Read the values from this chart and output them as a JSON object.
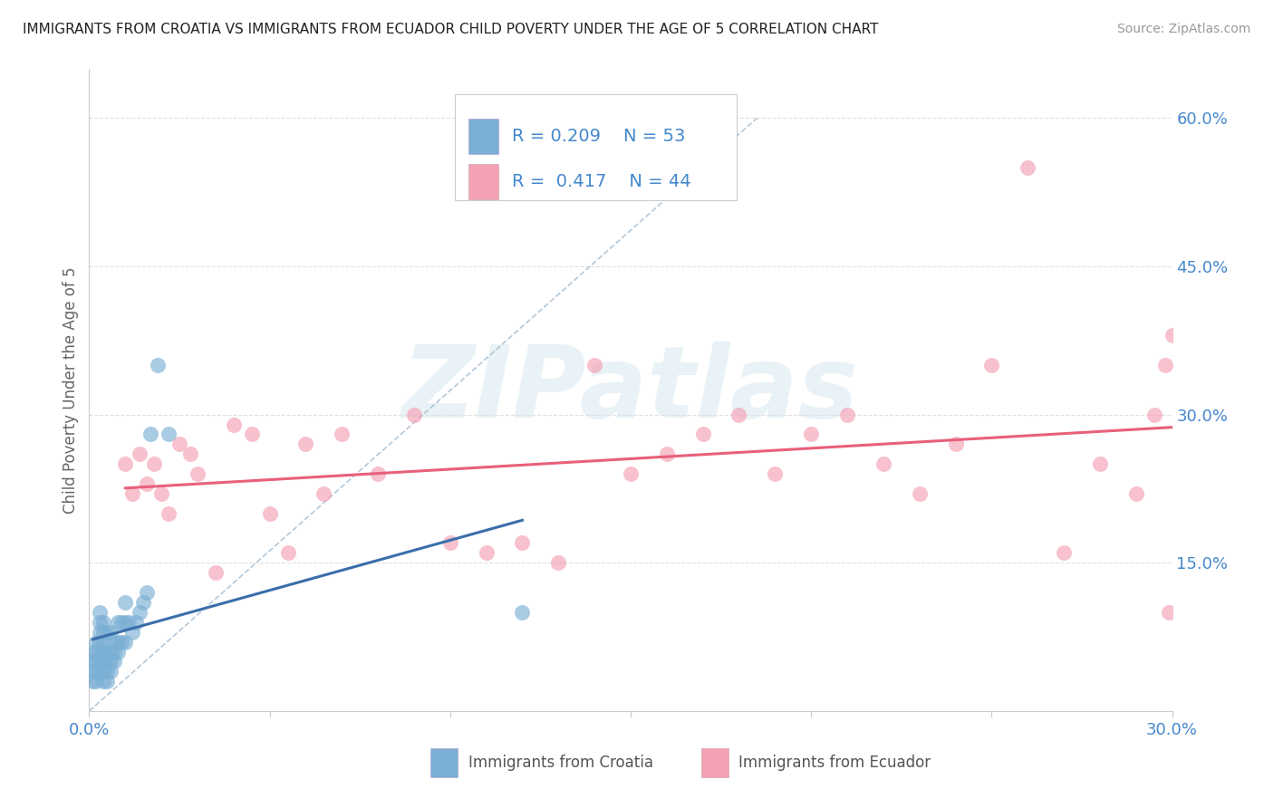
{
  "title": "IMMIGRANTS FROM CROATIA VS IMMIGRANTS FROM ECUADOR CHILD POVERTY UNDER THE AGE OF 5 CORRELATION CHART",
  "source": "Source: ZipAtlas.com",
  "ylabel": "Child Poverty Under the Age of 5",
  "xlim": [
    0.0,
    0.3
  ],
  "ylim": [
    0.0,
    0.65
  ],
  "xtick_vals": [
    0.0,
    0.05,
    0.1,
    0.15,
    0.2,
    0.25,
    0.3
  ],
  "xticklabels": [
    "0.0%",
    "",
    "",
    "",
    "",
    "",
    "30.0%"
  ],
  "ytick_right_vals": [
    0.0,
    0.15,
    0.3,
    0.45,
    0.6
  ],
  "yticklabels_right": [
    "",
    "15.0%",
    "30.0%",
    "45.0%",
    "60.0%"
  ],
  "croatia_color": "#7bafd4",
  "ecuador_color": "#f4a0b5",
  "croatia_line_color": "#3a6eaa",
  "ecuador_line_color": "#e8607a",
  "diag_color": "#9ab5cc",
  "grid_color": "#e0e0e0",
  "label_color": "#4488cc",
  "croatia_R": 0.209,
  "croatia_N": 53,
  "ecuador_R": 0.417,
  "ecuador_N": 44,
  "croatia_x": [
    0.001,
    0.001,
    0.001,
    0.001,
    0.002,
    0.002,
    0.002,
    0.002,
    0.002,
    0.003,
    0.003,
    0.003,
    0.003,
    0.003,
    0.003,
    0.003,
    0.004,
    0.004,
    0.004,
    0.004,
    0.004,
    0.004,
    0.004,
    0.005,
    0.005,
    0.005,
    0.005,
    0.005,
    0.006,
    0.006,
    0.006,
    0.006,
    0.007,
    0.007,
    0.007,
    0.008,
    0.008,
    0.008,
    0.009,
    0.009,
    0.01,
    0.01,
    0.01,
    0.011,
    0.012,
    0.013,
    0.014,
    0.015,
    0.016,
    0.017,
    0.019,
    0.022,
    0.12
  ],
  "croatia_y": [
    0.03,
    0.04,
    0.05,
    0.06,
    0.03,
    0.04,
    0.05,
    0.06,
    0.07,
    0.04,
    0.05,
    0.06,
    0.07,
    0.08,
    0.09,
    0.1,
    0.03,
    0.04,
    0.05,
    0.06,
    0.07,
    0.08,
    0.09,
    0.03,
    0.04,
    0.05,
    0.06,
    0.08,
    0.04,
    0.05,
    0.06,
    0.08,
    0.05,
    0.06,
    0.07,
    0.06,
    0.07,
    0.09,
    0.07,
    0.09,
    0.07,
    0.09,
    0.11,
    0.09,
    0.08,
    0.09,
    0.1,
    0.11,
    0.12,
    0.28,
    0.35,
    0.28,
    0.1
  ],
  "ecuador_x": [
    0.01,
    0.012,
    0.014,
    0.016,
    0.018,
    0.02,
    0.022,
    0.025,
    0.028,
    0.03,
    0.035,
    0.04,
    0.045,
    0.05,
    0.055,
    0.06,
    0.065,
    0.07,
    0.08,
    0.09,
    0.1,
    0.11,
    0.12,
    0.13,
    0.14,
    0.15,
    0.16,
    0.17,
    0.18,
    0.19,
    0.2,
    0.21,
    0.22,
    0.23,
    0.24,
    0.25,
    0.26,
    0.27,
    0.28,
    0.29,
    0.295,
    0.298,
    0.299,
    0.3
  ],
  "ecuador_y": [
    0.25,
    0.22,
    0.26,
    0.23,
    0.25,
    0.22,
    0.2,
    0.27,
    0.26,
    0.24,
    0.14,
    0.29,
    0.28,
    0.2,
    0.16,
    0.27,
    0.22,
    0.28,
    0.24,
    0.3,
    0.17,
    0.16,
    0.17,
    0.15,
    0.35,
    0.24,
    0.26,
    0.28,
    0.3,
    0.24,
    0.28,
    0.3,
    0.25,
    0.22,
    0.27,
    0.35,
    0.55,
    0.16,
    0.25,
    0.22,
    0.3,
    0.35,
    0.1,
    0.38
  ],
  "watermark_text": "ZIPatlas",
  "background_color": "#ffffff"
}
